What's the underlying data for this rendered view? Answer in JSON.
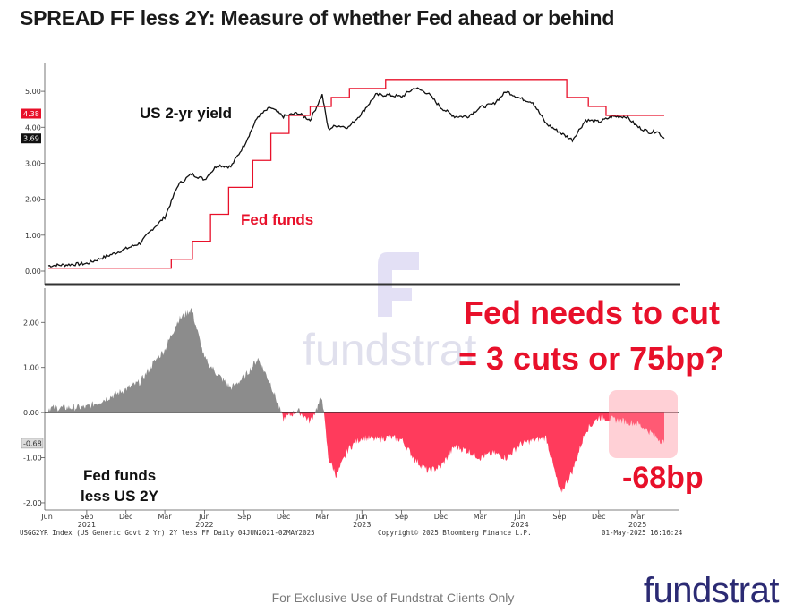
{
  "title": "SPREAD FF less 2Y: Measure of whether Fed ahead or behind",
  "footer": "For Exclusive Use of Fundstrat Clients Only",
  "logo_text": "fundstrat",
  "watermark_text": "fundstrat",
  "source_line": "USGG2YR Index (US Generic Govt 2 Yr) 2Y less FF  Daily 04JUN2021-02MAY2025",
  "copyright": "Copyright© 2025 Bloomberg Finance L.P.",
  "timestamp": "01-May-2025 16:16:24",
  "colors": {
    "yield": "#111111",
    "fedfunds": "#e8102a",
    "positive_fill": "#8c8c8c",
    "negative_fill": "#ff3b5c",
    "annotation": "#e8102a",
    "logo": "#2b2a73"
  },
  "chart_data": [
    {
      "type": "line",
      "x_range": [
        "2021-06-04",
        "2025-05-02"
      ],
      "ylim": [
        0,
        5.5
      ],
      "y_ticks": [
        "0.00",
        "1.00",
        "2.00",
        "3.00",
        "4.00",
        "5.00"
      ],
      "last_value_badges": [
        {
          "label": "4.38",
          "value": 4.38,
          "color": "#e8102a"
        },
        {
          "label": "3.69",
          "value": 3.69,
          "color": "#111111"
        }
      ],
      "series": [
        {
          "name": "US 2-yr yield",
          "x": [
            "2021-06-04",
            "2021-09-01",
            "2021-11-01",
            "2022-01-03",
            "2022-02-01",
            "2022-03-01",
            "2022-04-01",
            "2022-05-02",
            "2022-06-01",
            "2022-07-01",
            "2022-08-01",
            "2022-09-01",
            "2022-10-03",
            "2022-11-01",
            "2022-12-01",
            "2023-01-03",
            "2023-02-01",
            "2023-03-01",
            "2023-03-15",
            "2023-04-03",
            "2023-05-01",
            "2023-06-01",
            "2023-07-03",
            "2023-08-01",
            "2023-09-01",
            "2023-10-02",
            "2023-11-01",
            "2023-12-01",
            "2024-01-02",
            "2024-02-01",
            "2024-03-01",
            "2024-04-01",
            "2024-05-01",
            "2024-06-03",
            "2024-07-01",
            "2024-08-01",
            "2024-09-03",
            "2024-10-01",
            "2024-11-01",
            "2024-12-02",
            "2025-01-02",
            "2025-02-03",
            "2025-03-03",
            "2025-04-01",
            "2025-04-15",
            "2025-05-02"
          ],
          "values": [
            0.15,
            0.21,
            0.48,
            0.78,
            1.18,
            1.5,
            2.4,
            2.7,
            2.55,
            2.95,
            2.9,
            3.5,
            4.3,
            4.55,
            4.3,
            4.4,
            4.2,
            4.9,
            3.95,
            4.05,
            4.0,
            4.4,
            4.9,
            4.9,
            4.85,
            5.1,
            4.95,
            4.55,
            4.3,
            4.3,
            4.55,
            4.65,
            5.0,
            4.8,
            4.7,
            4.1,
            3.85,
            3.65,
            4.2,
            4.15,
            4.3,
            4.3,
            4.0,
            3.85,
            3.9,
            3.69
          ]
        },
        {
          "name": "Fed funds",
          "x": [
            "2021-06-04",
            "2022-03-16",
            "2022-05-04",
            "2022-06-15",
            "2022-07-27",
            "2022-09-21",
            "2022-11-02",
            "2022-12-14",
            "2023-02-01",
            "2023-03-22",
            "2023-05-03",
            "2023-07-26",
            "2024-09-18",
            "2024-11-07",
            "2024-12-18",
            "2025-05-02"
          ],
          "values": [
            0.08,
            0.33,
            0.83,
            1.58,
            2.33,
            3.08,
            3.83,
            4.33,
            4.58,
            4.83,
            5.08,
            5.33,
            4.83,
            4.58,
            4.33,
            4.33
          ]
        }
      ]
    },
    {
      "type": "area",
      "x_range": [
        "2021-06-04",
        "2025-05-02"
      ],
      "ylim": [
        -2.1,
        2.7
      ],
      "y_ticks": [
        "-2.00",
        "-1.00",
        "0.00",
        "1.00",
        "2.00"
      ],
      "last_value_badges": [
        {
          "label": "-0.68",
          "value": -0.68,
          "color": "#111111"
        }
      ],
      "x_tick_labels": [
        {
          "label": "Jun",
          "year": "",
          "x": "2021-06-01"
        },
        {
          "label": "Sep",
          "year": "2021",
          "x": "2021-09-01"
        },
        {
          "label": "Dec",
          "year": "",
          "x": "2021-12-01"
        },
        {
          "label": "Mar",
          "year": "",
          "x": "2022-03-01"
        },
        {
          "label": "Jun",
          "year": "2022",
          "x": "2022-06-01"
        },
        {
          "label": "Sep",
          "year": "",
          "x": "2022-09-01"
        },
        {
          "label": "Dec",
          "year": "",
          "x": "2022-12-01"
        },
        {
          "label": "Mar",
          "year": "",
          "x": "2023-03-01"
        },
        {
          "label": "Jun",
          "year": "2023",
          "x": "2023-06-01"
        },
        {
          "label": "Sep",
          "year": "",
          "x": "2023-09-01"
        },
        {
          "label": "Dec",
          "year": "",
          "x": "2023-12-01"
        },
        {
          "label": "Mar",
          "year": "",
          "x": "2024-03-01"
        },
        {
          "label": "Jun",
          "year": "2024",
          "x": "2024-06-01"
        },
        {
          "label": "Sep",
          "year": "",
          "x": "2024-09-01"
        },
        {
          "label": "Dec",
          "year": "",
          "x": "2024-12-01"
        },
        {
          "label": "Mar",
          "year": "2025",
          "x": "2025-03-01"
        }
      ],
      "series": [
        {
          "name": "Fed funds less US 2Y",
          "x": [
            "2021-06-04",
            "2021-09-01",
            "2021-11-01",
            "2022-01-03",
            "2022-02-01",
            "2022-03-01",
            "2022-04-01",
            "2022-05-02",
            "2022-06-01",
            "2022-07-01",
            "2022-08-01",
            "2022-09-01",
            "2022-10-03",
            "2022-11-01",
            "2022-12-01",
            "2023-01-03",
            "2023-02-01",
            "2023-03-01",
            "2023-03-15",
            "2023-04-03",
            "2023-05-01",
            "2023-06-01",
            "2023-07-03",
            "2023-08-01",
            "2023-09-01",
            "2023-10-02",
            "2023-11-01",
            "2023-12-01",
            "2024-01-02",
            "2024-02-01",
            "2024-03-01",
            "2024-04-01",
            "2024-05-01",
            "2024-06-03",
            "2024-07-01",
            "2024-08-01",
            "2024-09-03",
            "2024-10-01",
            "2024-11-01",
            "2024-12-02",
            "2025-01-02",
            "2025-02-03",
            "2025-03-03",
            "2025-04-01",
            "2025-04-15",
            "2025-05-02"
          ],
          "values": [
            0.1,
            0.12,
            0.38,
            0.68,
            1.08,
            1.4,
            2.05,
            2.3,
            1.2,
            0.85,
            0.55,
            0.78,
            1.2,
            0.65,
            -0.15,
            0.05,
            -0.2,
            0.35,
            -1.0,
            -1.4,
            -0.8,
            -0.55,
            -0.6,
            -0.55,
            -0.6,
            -1.05,
            -1.3,
            -1.2,
            -0.75,
            -0.85,
            -1.0,
            -0.9,
            -1.0,
            -0.7,
            -0.62,
            -0.55,
            -1.8,
            -1.3,
            -0.4,
            -0.1,
            -0.15,
            -0.2,
            -0.25,
            -0.45,
            -0.55,
            -0.68
          ]
        }
      ]
    }
  ],
  "annotations": {
    "yield_label": "US 2-yr yield",
    "fedfunds_label": "Fed funds",
    "spread_label_line1": "Fed funds",
    "spread_label_line2": "less US 2Y",
    "callout_line1": "Fed needs to cut",
    "callout_line2": "= 3 cuts or 75bp?",
    "bp_label": "-68bp"
  }
}
